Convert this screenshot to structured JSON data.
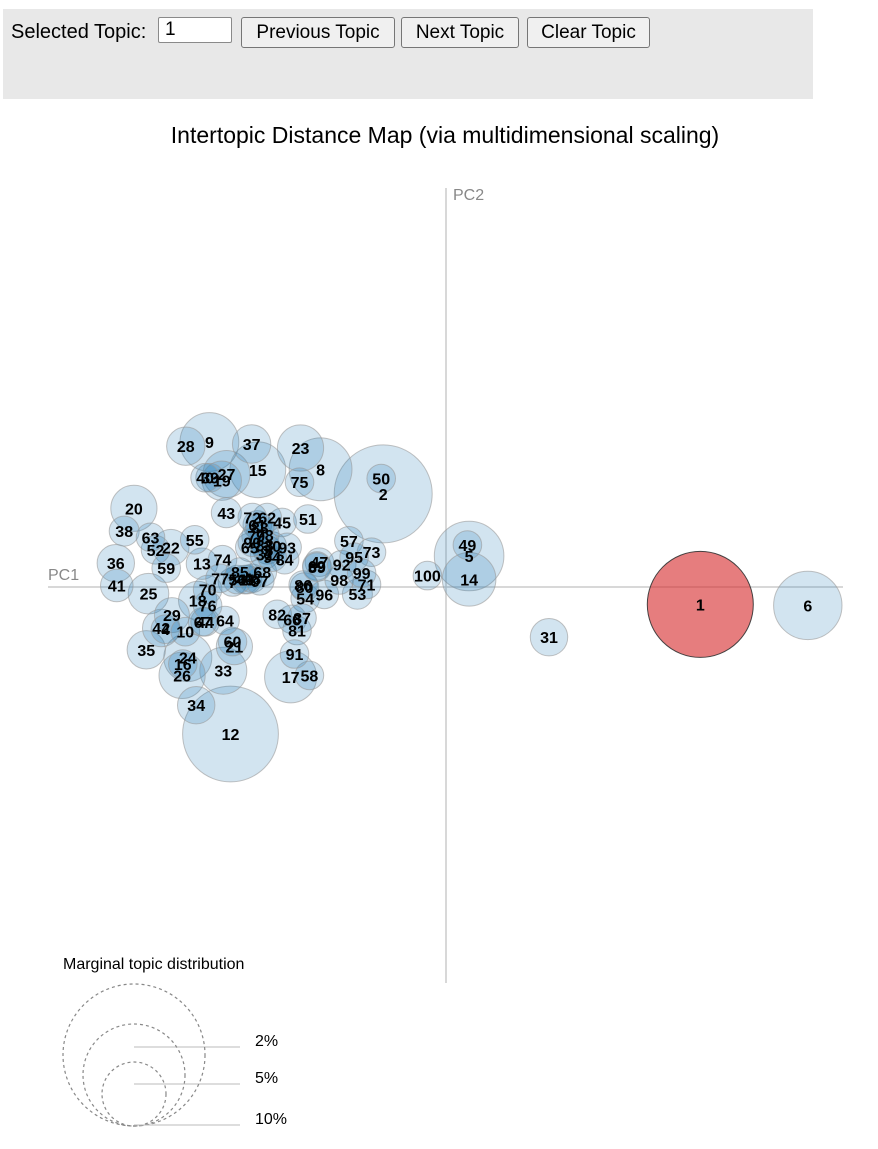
{
  "toolbar": {
    "selected_label": "Selected Topic:",
    "selected_value": "1",
    "prev_label": "Previous Topic",
    "next_label": "Next Topic",
    "clear_label": "Clear Topic"
  },
  "colors": {
    "bubble_fill": "#1f77b4",
    "selected_fill": "#d62728",
    "axis": "#cccccc"
  },
  "chart_data": {
    "type": "scatter",
    "title": "Intertopic Distance Map (via multidimensional scaling)",
    "xlabel": "PC1",
    "ylabel": "PC2",
    "xlim": [
      -160,
      160
    ],
    "ylim": [
      -160,
      160
    ],
    "selected_topic": 1,
    "legend": {
      "title": "Marginal topic distribution",
      "entries": [
        {
          "label": "2%",
          "value": 2
        },
        {
          "label": "5%",
          "value": 5
        },
        {
          "label": "10%",
          "value": 10
        }
      ]
    },
    "points": [
      {
        "topic": "1",
        "x": 102.4,
        "y": -7.0,
        "size": 13.7
      },
      {
        "topic": "2",
        "x": -25.3,
        "y": 37.5,
        "size": 11.7
      },
      {
        "topic": "3",
        "x": -72.0,
        "y": 15.0,
        "size": 1.0
      },
      {
        "topic": "4",
        "x": -113.0,
        "y": -17.0,
        "size": 1.0
      },
      {
        "topic": "5",
        "x": 9.3,
        "y": 12.5,
        "size": 5.9
      },
      {
        "topic": "6",
        "x": 145.7,
        "y": -7.4,
        "size": 5.7
      },
      {
        "topic": "7",
        "x": -86.0,
        "y": 2.0,
        "size": 1.0
      },
      {
        "topic": "8",
        "x": -50.5,
        "y": 47.4,
        "size": 4.8
      },
      {
        "topic": "9",
        "x": -95.3,
        "y": 58.4,
        "size": 4.2
      },
      {
        "topic": "10",
        "x": -105.0,
        "y": -18.0,
        "size": 1.0
      },
      {
        "topic": "11",
        "x": -80.0,
        "y": 3.0,
        "size": 1.0
      },
      {
        "topic": "12",
        "x": -86.8,
        "y": -59.2,
        "size": 11.2
      },
      {
        "topic": "13",
        "x": -98.3,
        "y": 9.4,
        "size": 1.2
      },
      {
        "topic": "14",
        "x": 9.3,
        "y": 3.1,
        "size": 3.5
      },
      {
        "topic": "15",
        "x": -75.8,
        "y": 47.2,
        "size": 3.8
      },
      {
        "topic": "16",
        "x": -106.0,
        "y": -31.0,
        "size": 1.0
      },
      {
        "topic": "17",
        "x": -62.6,
        "y": -36.2,
        "size": 3.3
      },
      {
        "topic": "18",
        "x": -100.0,
        "y": -5.4,
        "size": 1.8
      },
      {
        "topic": "19",
        "x": -90.3,
        "y": 42.8,
        "size": 1.9
      },
      {
        "topic": "20",
        "x": -125.7,
        "y": 31.7,
        "size": 2.6
      },
      {
        "topic": "21",
        "x": -85.2,
        "y": -24.0,
        "size": 1.6
      },
      {
        "topic": "22",
        "x": -110.8,
        "y": 15.9,
        "size": 1.6
      },
      {
        "topic": "23",
        "x": -58.6,
        "y": 56.0,
        "size": 2.6
      },
      {
        "topic": "24",
        "x": -104.0,
        "y": -28.4,
        "size": 2.8
      },
      {
        "topic": "25",
        "x": -119.8,
        "y": -2.7,
        "size": 2.0
      },
      {
        "topic": "26",
        "x": -106.3,
        "y": -35.6,
        "size": 2.6
      },
      {
        "topic": "27",
        "x": -88.4,
        "y": 45.5,
        "size": 2.7
      },
      {
        "topic": "28",
        "x": -104.8,
        "y": 56.7,
        "size": 1.8
      },
      {
        "topic": "29",
        "x": -110.4,
        "y": -11.3,
        "size": 1.5
      },
      {
        "topic": "30",
        "x": -70.0,
        "y": 16.5,
        "size": 1.0
      },
      {
        "topic": "31",
        "x": 41.5,
        "y": -20.2,
        "size": 1.7
      },
      {
        "topic": "32",
        "x": -73.0,
        "y": 13.0,
        "size": 1.0
      },
      {
        "topic": "33",
        "x": -89.7,
        "y": -33.7,
        "size": 2.7
      },
      {
        "topic": "34",
        "x": -100.6,
        "y": -47.6,
        "size": 1.7
      },
      {
        "topic": "35",
        "x": -120.7,
        "y": -25.3,
        "size": 1.8
      },
      {
        "topic": "36",
        "x": -133.0,
        "y": 9.6,
        "size": 1.7
      },
      {
        "topic": "37",
        "x": -78.3,
        "y": 57.6,
        "size": 1.8
      },
      {
        "topic": "38",
        "x": -129.6,
        "y": 22.5,
        "size": 1.1
      },
      {
        "topic": "39",
        "x": -95.0,
        "y": 44.0,
        "size": 1.0
      },
      {
        "topic": "40",
        "x": -97.0,
        "y": 44.0,
        "size": 1.0
      },
      {
        "topic": "41",
        "x": -132.6,
        "y": 0.6,
        "size": 1.3
      },
      {
        "topic": "42",
        "x": -114.7,
        "y": -16.5,
        "size": 1.7
      },
      {
        "topic": "43",
        "x": -88.5,
        "y": 29.9,
        "size": 1.1
      },
      {
        "topic": "44",
        "x": -97.0,
        "y": -14.0,
        "size": 1.0
      },
      {
        "topic": "45",
        "x": -66.0,
        "y": 26.0,
        "size": 1.0
      },
      {
        "topic": "46",
        "x": -81.0,
        "y": 3.0,
        "size": 1.0
      },
      {
        "topic": "47",
        "x": -51.0,
        "y": 10.0,
        "size": 1.0
      },
      {
        "topic": "48",
        "x": -78.0,
        "y": 3.5,
        "size": 1.0
      },
      {
        "topic": "49",
        "x": 8.6,
        "y": 16.9,
        "size": 1.0
      },
      {
        "topic": "50",
        "x": -26.1,
        "y": 43.7,
        "size": 1.0
      },
      {
        "topic": "51",
        "x": -55.6,
        "y": 27.4,
        "size": 1.0
      },
      {
        "topic": "52",
        "x": -117.0,
        "y": 15.0,
        "size": 1.0
      },
      {
        "topic": "53",
        "x": -35.7,
        "y": -2.9,
        "size": 1.1
      },
      {
        "topic": "54",
        "x": -56.7,
        "y": -4.6,
        "size": 1.0
      },
      {
        "topic": "55",
        "x": -101.2,
        "y": 19.0,
        "size": 1.0
      },
      {
        "topic": "56",
        "x": -84.0,
        "y": 3.0,
        "size": 1.0
      },
      {
        "topic": "57",
        "x": -39.1,
        "y": 18.6,
        "size": 1.0
      },
      {
        "topic": "58",
        "x": -55.0,
        "y": -35.6,
        "size": 1.0
      },
      {
        "topic": "59",
        "x": -112.7,
        "y": 7.6,
        "size": 1.0
      },
      {
        "topic": "60",
        "x": -86.0,
        "y": -22.0,
        "size": 1.0
      },
      {
        "topic": "61",
        "x": -76.0,
        "y": 25.0,
        "size": 1.0
      },
      {
        "topic": "62",
        "x": -72.0,
        "y": 28.0,
        "size": 1.0
      },
      {
        "topic": "63",
        "x": -119.0,
        "y": 20.0,
        "size": 1.0
      },
      {
        "topic": "64",
        "x": -89.0,
        "y": -13.5,
        "size": 1.0
      },
      {
        "topic": "65",
        "x": -79.0,
        "y": 16.0,
        "size": 1.0
      },
      {
        "topic": "66",
        "x": -62.0,
        "y": -13.0,
        "size": 1.0
      },
      {
        "topic": "67",
        "x": -98.0,
        "y": -14.0,
        "size": 1.0
      },
      {
        "topic": "68",
        "x": -74.0,
        "y": 6.0,
        "size": 1.0
      },
      {
        "topic": "69",
        "x": -52.0,
        "y": 8.5,
        "size": 1.0
      },
      {
        "topic": "70",
        "x": -96.0,
        "y": -1.0,
        "size": 1.0
      },
      {
        "topic": "71",
        "x": -32.0,
        "y": 1.0,
        "size": 1.0
      },
      {
        "topic": "72",
        "x": -78.0,
        "y": 28.0,
        "size": 1.0
      },
      {
        "topic": "73",
        "x": -30.0,
        "y": 14.0,
        "size": 1.0
      },
      {
        "topic": "74",
        "x": -90.0,
        "y": 11.0,
        "size": 1.0
      },
      {
        "topic": "75",
        "x": -59.0,
        "y": 42.2,
        "size": 1.0
      },
      {
        "topic": "76",
        "x": -96.0,
        "y": -7.5,
        "size": 1.0
      },
      {
        "topic": "77",
        "x": -91.0,
        "y": 3.5,
        "size": 1.0
      },
      {
        "topic": "78",
        "x": -73.0,
        "y": 21.0,
        "size": 1.0
      },
      {
        "topic": "79",
        "x": -76.5,
        "y": 20.5,
        "size": 1.0
      },
      {
        "topic": "80",
        "x": -57.0,
        "y": 0.0,
        "size": 1.0
      },
      {
        "topic": "81",
        "x": -60.0,
        "y": -17.5,
        "size": 1.0
      },
      {
        "topic": "82",
        "x": -68.0,
        "y": -11.0,
        "size": 1.0
      },
      {
        "topic": "83",
        "x": -75.0,
        "y": 24.0,
        "size": 1.0
      },
      {
        "topic": "84",
        "x": -65.0,
        "y": 11.0,
        "size": 1.0
      },
      {
        "topic": "85",
        "x": -83.0,
        "y": 6.0,
        "size": 1.0
      },
      {
        "topic": "86",
        "x": -57.5,
        "y": 0.8,
        "size": 1.0
      },
      {
        "topic": "87",
        "x": -58.0,
        "y": -12.5,
        "size": 1.0
      },
      {
        "topic": "88",
        "x": -73.0,
        "y": 17.0,
        "size": 1.0
      },
      {
        "topic": "89",
        "x": -52.0,
        "y": 8.0,
        "size": 1.0
      },
      {
        "topic": "90",
        "x": -78.0,
        "y": 18.0,
        "size": 1.0
      },
      {
        "topic": "91",
        "x": -61.0,
        "y": -27.0,
        "size": 1.0
      },
      {
        "topic": "92",
        "x": -42.0,
        "y": 9.0,
        "size": 1.0
      },
      {
        "topic": "93",
        "x": -64.0,
        "y": 16.0,
        "size": 1.0
      },
      {
        "topic": "94",
        "x": -70.0,
        "y": 12.0,
        "size": 1.0
      },
      {
        "topic": "95",
        "x": -37.0,
        "y": 12.0,
        "size": 1.0
      },
      {
        "topic": "96",
        "x": -49.0,
        "y": -3.0,
        "size": 1.0
      },
      {
        "topic": "97",
        "x": -75.0,
        "y": 2.5,
        "size": 1.0
      },
      {
        "topic": "98",
        "x": -43.0,
        "y": 2.8,
        "size": 1.0
      },
      {
        "topic": "99",
        "x": -34.0,
        "y": 5.6,
        "size": 1.0
      },
      {
        "topic": "100",
        "x": -7.5,
        "y": 4.6,
        "size": 1.0
      }
    ]
  }
}
